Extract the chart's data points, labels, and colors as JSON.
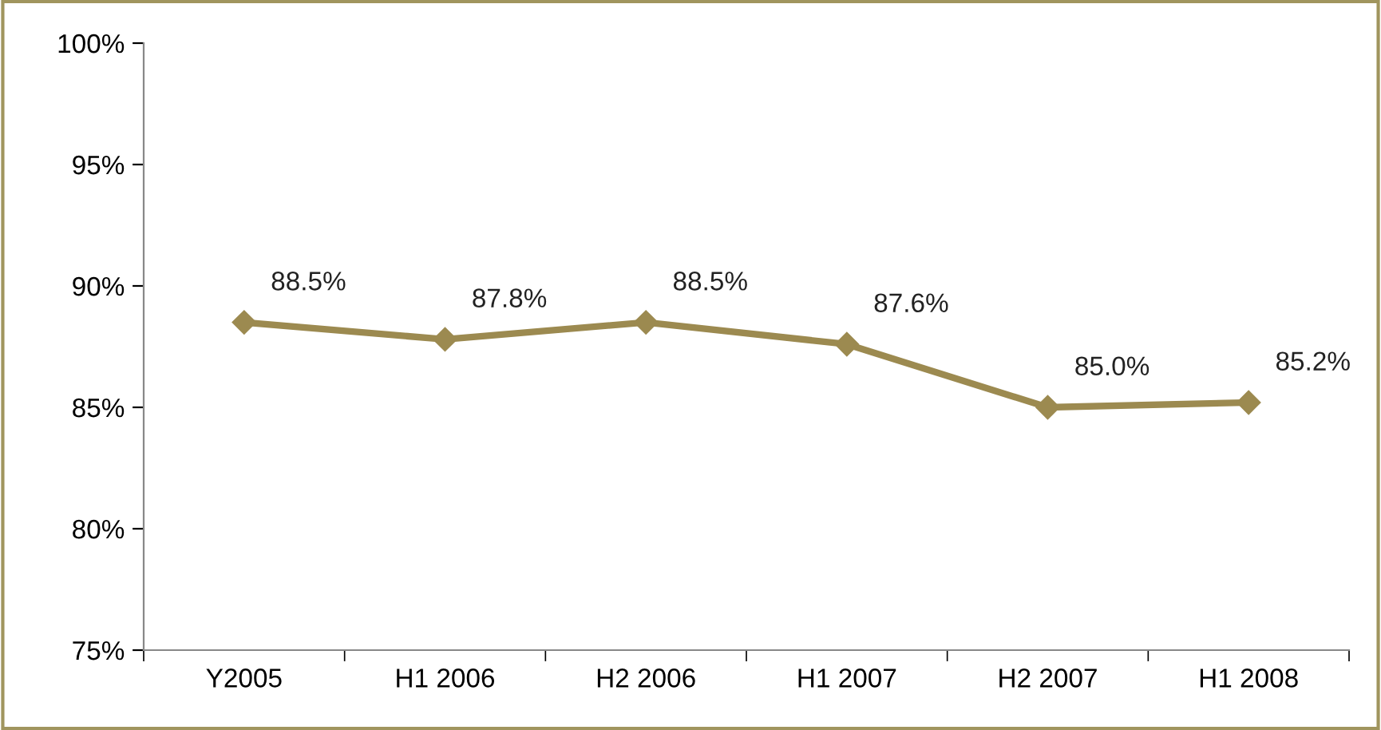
{
  "chart_data": {
    "type": "line",
    "categories": [
      "Y2005",
      "H1 2006",
      "H2 2006",
      "H1 2007",
      "H2 2007",
      "H1 2008"
    ],
    "series": [
      {
        "color": "#9c8a50",
        "values": [
          88.5,
          87.8,
          88.5,
          87.6,
          85.0,
          85.2
        ],
        "value_labels": [
          "88.5%",
          "87.8%",
          "88.5%",
          "87.6%",
          "85.0%",
          "85.2%"
        ]
      }
    ],
    "ylim": [
      75,
      100
    ],
    "yticks": [
      {
        "value": 75,
        "label": "75%"
      },
      {
        "value": 80,
        "label": "80%"
      },
      {
        "value": 85,
        "label": "85%"
      },
      {
        "value": 90,
        "label": "90%"
      },
      {
        "value": 95,
        "label": "95%"
      },
      {
        "value": 100,
        "label": "100%"
      }
    ],
    "marker": "diamond",
    "line_style": "solid",
    "grid": false,
    "legend": false
  }
}
